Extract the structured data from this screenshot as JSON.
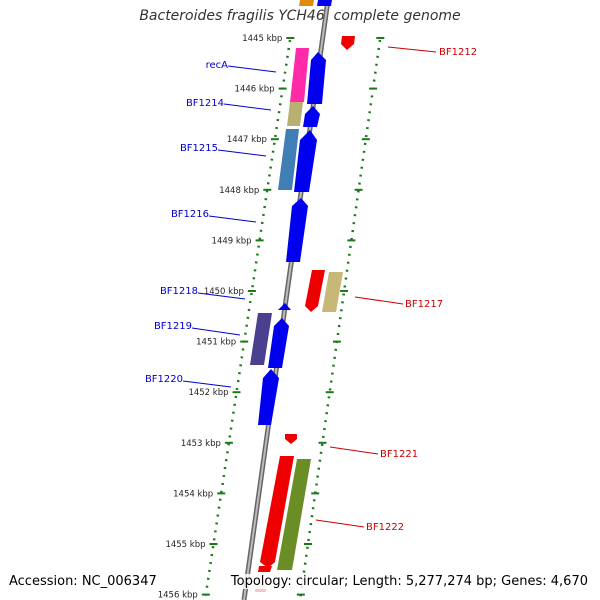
{
  "title": "Bacteroides fragilis YCH46, complete genome",
  "accession": "Accession: NC_006347",
  "summary": "Topology: circular; Length: 5,277,274 bp; Genes: 4,670",
  "scale_labels": [
    "1445 kbp",
    "1446 kbp",
    "1447 kbp",
    "1448 kbp",
    "1449 kbp",
    "1450 kbp",
    "1451 kbp",
    "1452 kbp",
    "1453 kbp",
    "1454 kbp",
    "1455 kbp",
    "1456 kbp"
  ],
  "colors": {
    "forward_label": "#0000cc",
    "reverse_label": "#cc0000",
    "backbone": "#888888",
    "ruler": "#1a7a1a"
  },
  "gene_labels_left": [
    "recA",
    "BF1214",
    "BF1215",
    "BF1216",
    "BF1218",
    "BF1219",
    "BF1220"
  ],
  "gene_labels_right": [
    "BF1212",
    "BF1217",
    "BF1221",
    "BF1222"
  ]
}
